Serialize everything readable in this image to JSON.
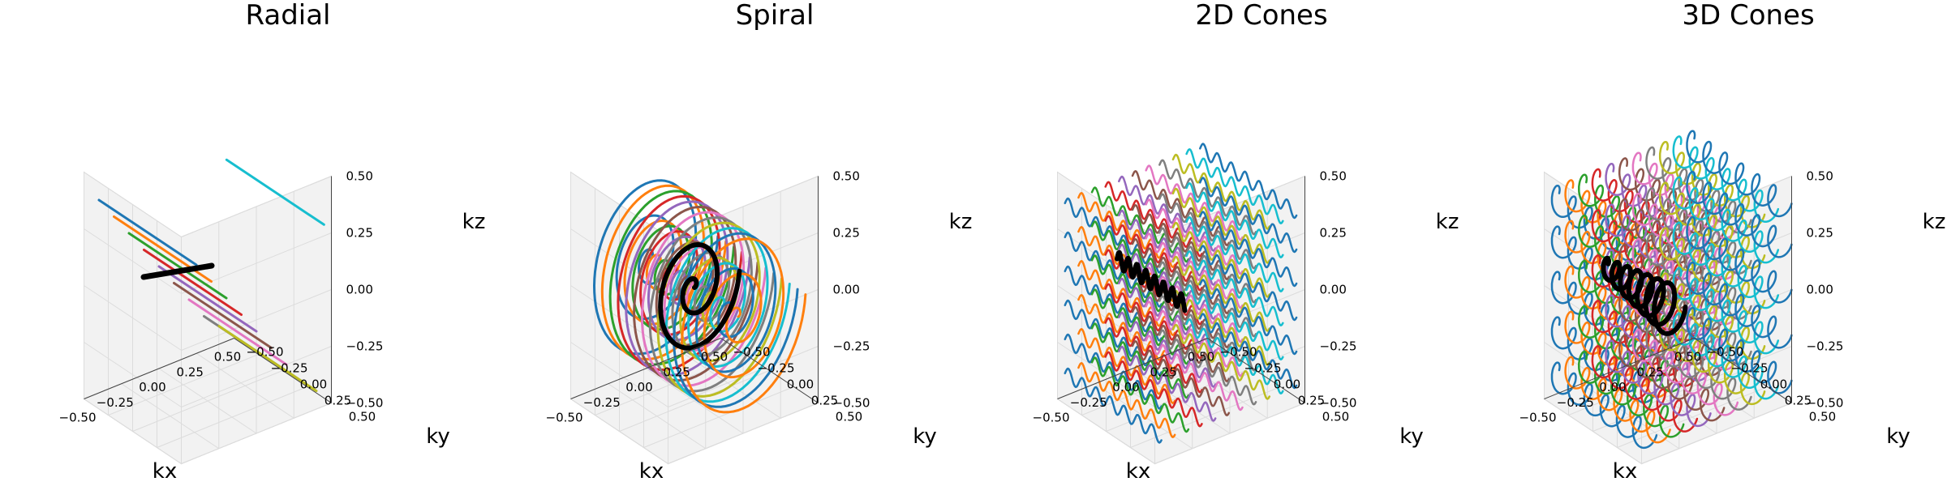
{
  "figure": {
    "panels": 4
  },
  "colors": {
    "cycle": [
      "#1f77b4",
      "#ff7f0e",
      "#2ca02c",
      "#d62728",
      "#9467bd",
      "#8c564b",
      "#e377c2",
      "#7f7f7f",
      "#bcbd22",
      "#17becf"
    ],
    "highlight": "#000000",
    "pane": "#f2f2f2",
    "grid": "#dcdcdc"
  },
  "chart_data": [
    {
      "type": "line",
      "projection": "3d",
      "title": "Radial",
      "xlabel": "kx",
      "ylabel": "ky",
      "zlabel": "kz",
      "xlim": [
        -0.5,
        0.5
      ],
      "ylim": [
        -0.5,
        0.5
      ],
      "zlim": [
        -0.5,
        0.5
      ],
      "xticks": [
        "−0.50",
        "−0.25",
        "0.00",
        "0.25",
        "0.50"
      ],
      "yticks": [
        "−0.50",
        "−0.25",
        "0.00",
        "0.25",
        "0.50"
      ],
      "zticks": [
        "−0.50",
        "−0.25",
        "0.00",
        "0.25",
        "0.50"
      ],
      "grid": true,
      "trajectory": "radial",
      "series": [
        {
          "values": [
            [
              -0.4,
              -0.5,
              0.35
            ],
            [
              -0.4,
              0.5,
              0.35
            ]
          ]
        },
        {
          "values": [
            [
              -0.3,
              -0.5,
              0.25
            ],
            [
              -0.3,
              0.5,
              0.25
            ]
          ]
        },
        {
          "values": [
            [
              -0.2,
              -0.5,
              0.15
            ],
            [
              -0.2,
              0.5,
              0.15
            ]
          ]
        },
        {
          "values": [
            [
              -0.1,
              -0.5,
              0.05
            ],
            [
              -0.1,
              0.5,
              0.05
            ]
          ]
        },
        {
          "values": [
            [
              0.0,
              -0.5,
              -0.05
            ],
            [
              0.0,
              0.5,
              -0.05
            ]
          ]
        },
        {
          "values": [
            [
              0.1,
              -0.5,
              -0.15
            ],
            [
              0.1,
              0.5,
              -0.15
            ]
          ]
        },
        {
          "values": [
            [
              0.2,
              -0.5,
              -0.25
            ],
            [
              0.2,
              0.5,
              -0.25
            ]
          ]
        },
        {
          "values": [
            [
              0.3,
              -0.5,
              -0.35
            ],
            [
              0.3,
              0.5,
              -0.35
            ]
          ]
        },
        {
          "values": [
            [
              0.4,
              -0.5,
              -0.42
            ],
            [
              0.4,
              0.5,
              -0.42
            ]
          ]
        },
        {
          "values": [
            [
              0.45,
              -0.5,
              0.3
            ],
            [
              0.45,
              0.5,
              0.3
            ]
          ]
        }
      ],
      "highlight": {
        "values": [
          [
            -0.2,
            -0.35,
            0.0
          ],
          [
            -0.2,
            0.35,
            0.25
          ]
        ]
      }
    },
    {
      "type": "line",
      "projection": "3d",
      "title": "Spiral",
      "xlabel": "kx",
      "ylabel": "ky",
      "zlabel": "kz",
      "xlim": [
        -0.5,
        0.5
      ],
      "ylim": [
        -0.5,
        0.5
      ],
      "zlim": [
        -0.5,
        0.5
      ],
      "xticks": [
        "−0.50",
        "−0.25",
        "0.00",
        "0.25",
        "0.50"
      ],
      "yticks": [
        "−0.50",
        "−0.25",
        "0.00",
        "0.25",
        "0.50"
      ],
      "zticks": [
        "−0.50",
        "−0.25",
        "0.00",
        "0.25",
        "0.50"
      ],
      "grid": true,
      "trajectory": "spiral",
      "turns": 3,
      "max_radius": 0.45,
      "highlight_radius": 0.3
    },
    {
      "type": "line",
      "projection": "3d",
      "title": "2D Cones",
      "xlabel": "kx",
      "ylabel": "ky",
      "zlabel": "kz",
      "xlim": [
        -0.5,
        0.5
      ],
      "ylim": [
        -0.5,
        0.5
      ],
      "zlim": [
        -0.5,
        0.5
      ],
      "xticks": [
        "−0.50",
        "−0.25",
        "0.00",
        "0.25",
        "0.50"
      ],
      "yticks": [
        "−0.50",
        "−0.25",
        "0.00",
        "0.25",
        "0.50"
      ],
      "zticks": [
        "−0.50",
        "−0.25",
        "0.00",
        "0.25",
        "0.50"
      ],
      "grid": true,
      "trajectory": "cones2d",
      "oscillations": 14,
      "amplitude": 0.03
    },
    {
      "type": "line",
      "projection": "3d",
      "title": "3D Cones",
      "xlabel": "kx",
      "ylabel": "ky",
      "zlabel": "kz",
      "xlim": [
        -0.5,
        0.5
      ],
      "ylim": [
        -0.5,
        0.5
      ],
      "zlim": [
        -0.5,
        0.5
      ],
      "xticks": [
        "−0.50",
        "−0.25",
        "0.00",
        "0.25",
        "0.50"
      ],
      "yticks": [
        "−0.50",
        "−0.25",
        "0.00",
        "0.25",
        "0.50"
      ],
      "zticks": [
        "−0.50",
        "−0.25",
        "0.00",
        "0.25",
        "0.50"
      ],
      "grid": true,
      "trajectory": "cones3d",
      "loops": 6,
      "loop_radius": 0.05
    }
  ]
}
